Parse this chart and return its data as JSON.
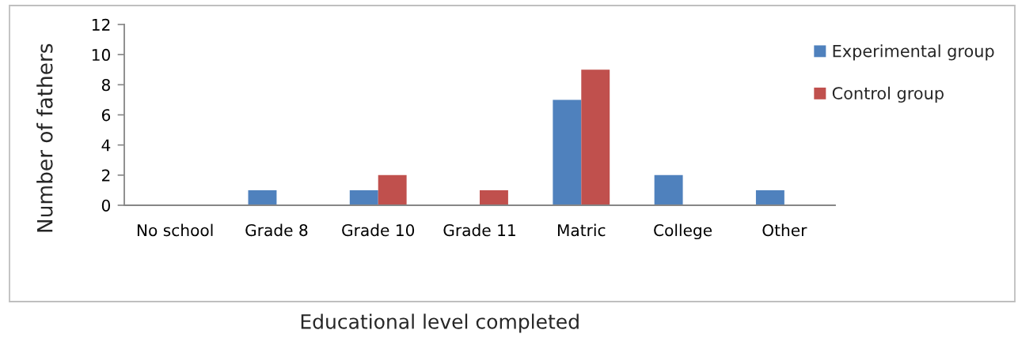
{
  "chart_data": {
    "type": "bar",
    "xlabel": "Educational level completed",
    "ylabel": "Number of fathers",
    "categories": [
      "No school",
      "Grade 8",
      "Grade 10",
      "Grade 11",
      "Matric",
      "College",
      "Other"
    ],
    "series": [
      {
        "name": "Experimental group",
        "color": "#4f81bd",
        "values": [
          0,
          1,
          1,
          0,
          7,
          2,
          1
        ]
      },
      {
        "name": "Control group",
        "color": "#c0504d",
        "values": [
          0,
          0,
          2,
          1,
          9,
          0,
          0
        ]
      }
    ],
    "ylim": [
      0,
      12
    ],
    "yticks": [
      0,
      2,
      4,
      6,
      8,
      10,
      12
    ],
    "grid": false,
    "legend": "top right"
  }
}
